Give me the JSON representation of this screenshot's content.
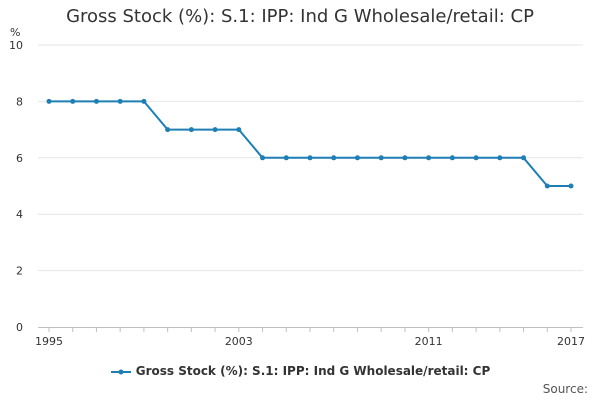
{
  "chart_data": {
    "type": "line",
    "title": "Gross Stock (%): S.1: IPP: Ind G Wholesale/retail: CP",
    "ylabel": "%",
    "xlabel": "",
    "ylim": [
      0,
      10
    ],
    "yticks": [
      0,
      2,
      4,
      6,
      8,
      10
    ],
    "xticks": [
      "1995",
      "2003",
      "2011",
      "2017"
    ],
    "grid": true,
    "legend_position": "bottom",
    "series": [
      {
        "name": "Gross Stock (%): S.1: IPP: Ind G Wholesale/retail: CP",
        "color": "#1f7fb4",
        "x": [
          1995,
          1996,
          1997,
          1998,
          1999,
          2000,
          2001,
          2002,
          2003,
          2004,
          2005,
          2006,
          2007,
          2008,
          2009,
          2010,
          2011,
          2012,
          2013,
          2014,
          2015,
          2016,
          2017
        ],
        "values": [
          8,
          8,
          8,
          8,
          8,
          7,
          7,
          7,
          7,
          6,
          6,
          6,
          6,
          6,
          6,
          6,
          6,
          6,
          6,
          6,
          6,
          5,
          5
        ]
      }
    ]
  },
  "source_label": "Source:"
}
